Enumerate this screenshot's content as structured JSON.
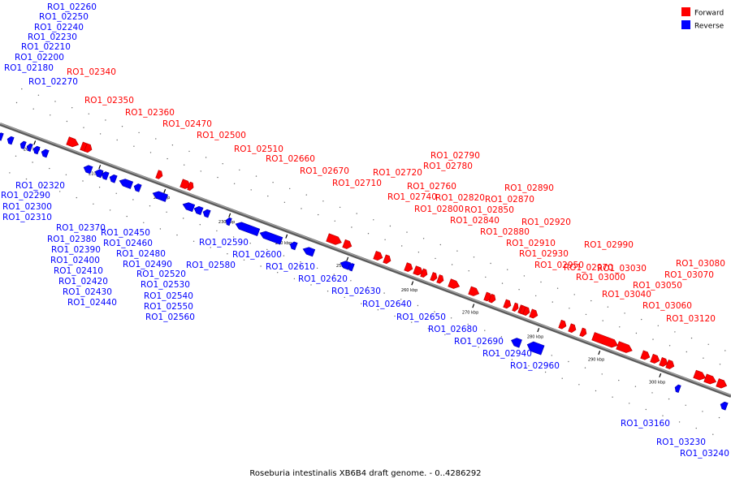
{
  "caption": "Roseburia intestinalis XB6B4 draft genome. - 0..4286292",
  "legend": {
    "forward": {
      "label": "Forward",
      "color": "#ff0000"
    },
    "reverse": {
      "label": "Reverse",
      "color": "#0000ff"
    }
  },
  "colors": {
    "forward": "#ff0000",
    "forward_dark": "#b00000",
    "reverse": "#0000ff",
    "reverse_dark": "#0000a8",
    "backbone": "#a0a0a0"
  },
  "ticks": [
    "200 kbp",
    "210 kbp",
    "220 kbp",
    "230 kbp",
    "240 kbp",
    "250 kbp",
    "260 kbp",
    "270 kbp",
    "280 kbp",
    "290 kbp",
    "300 kbp"
  ],
  "forward_genes": [
    "RO1_02340",
    "RO1_02350",
    "RO1_02360",
    "RO1_02470",
    "RO1_02500",
    "RO1_02510",
    "RO1_02660",
    "RO1_02670",
    "RO1_02710",
    "RO1_02720",
    "RO1_02740",
    "RO1_02760",
    "RO1_02780",
    "RO1_02790",
    "RO1_02800",
    "RO1_02820",
    "RO1_02840",
    "RO1_02850",
    "RO1_02870",
    "RO1_02880",
    "RO1_02890",
    "RO1_02910",
    "RO1_02920",
    "RO1_02930",
    "RO1_02950",
    "RO1_02970",
    "RO1_02990",
    "RO1_03000",
    "RO1_03030",
    "RO1_03040",
    "RO1_03050",
    "RO1_03060",
    "RO1_03070",
    "RO1_03080",
    "RO1_03120"
  ],
  "reverse_genes_top": [
    "RO1_02260",
    "RO1_02250",
    "RO1_02240",
    "RO1_02230",
    "RO1_02210",
    "RO1_02200",
    "RO1_02180",
    "RO1_02270"
  ],
  "reverse_genes_bottom": [
    "RO1_02320",
    "RO1_02290",
    "RO1_02300",
    "RO1_02310",
    "RO1_02370",
    "RO1_02380",
    "RO1_02390",
    "RO1_02400",
    "RO1_02410",
    "RO1_02420",
    "RO1_02430",
    "RO1_02440",
    "RO1_02450",
    "RO1_02460",
    "RO1_02480",
    "RO1_02490",
    "RO1_02520",
    "RO1_02530",
    "RO1_02540",
    "RO1_02550",
    "RO1_02560",
    "RO1_02580",
    "RO1_02590",
    "RO1_02600",
    "RO1_02610",
    "RO1_02620",
    "RO1_02630",
    "RO1_02640",
    "RO1_02650",
    "RO1_02680",
    "RO1_02690",
    "RO1_02940",
    "RO1_02960",
    "RO1_03160",
    "RO1_03230",
    "RO1_03240"
  ]
}
